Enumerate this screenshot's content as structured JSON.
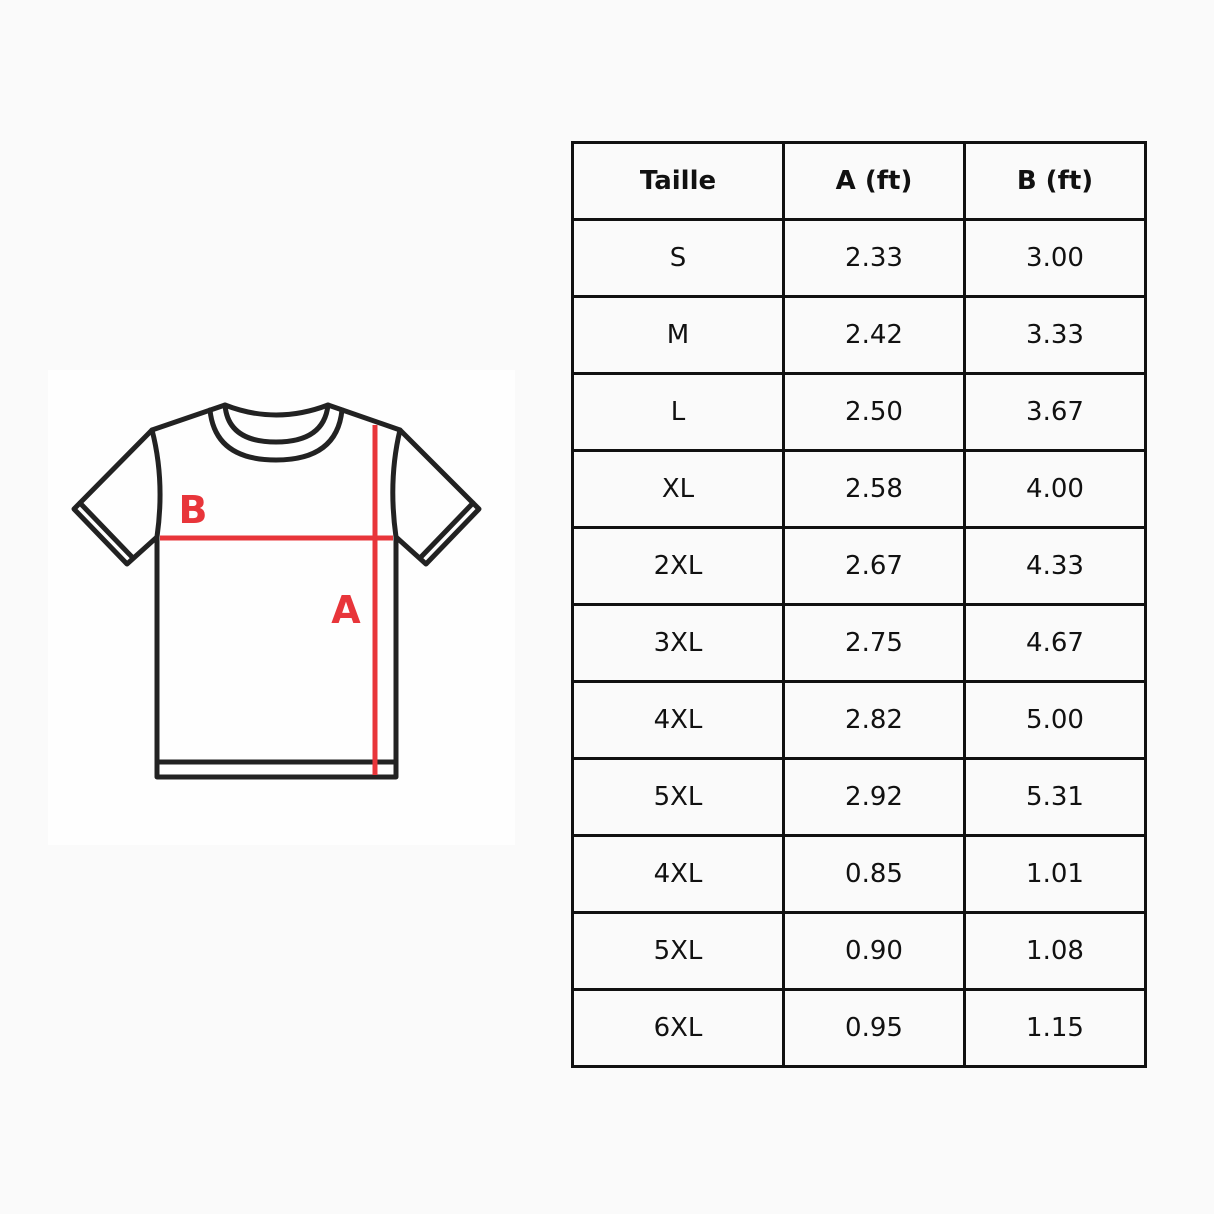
{
  "diagram": {
    "label_a": "A",
    "label_b": "B",
    "measure_color": "#e8353a",
    "outline_color": "#222222"
  },
  "table": {
    "headers": [
      "Taille",
      "A (ft)",
      "B (ft)"
    ],
    "rows": [
      [
        "S",
        "2.33",
        "3.00"
      ],
      [
        "M",
        "2.42",
        "3.33"
      ],
      [
        "L",
        "2.50",
        "3.67"
      ],
      [
        "XL",
        "2.58",
        "4.00"
      ],
      [
        "2XL",
        "2.67",
        "4.33"
      ],
      [
        "3XL",
        "2.75",
        "4.67"
      ],
      [
        "4XL",
        "2.82",
        "5.00"
      ],
      [
        "5XL",
        "2.92",
        "5.31"
      ],
      [
        "4XL",
        "0.85",
        "1.01"
      ],
      [
        "5XL",
        "0.90",
        "1.08"
      ],
      [
        "6XL",
        "0.95",
        "1.15"
      ]
    ]
  }
}
